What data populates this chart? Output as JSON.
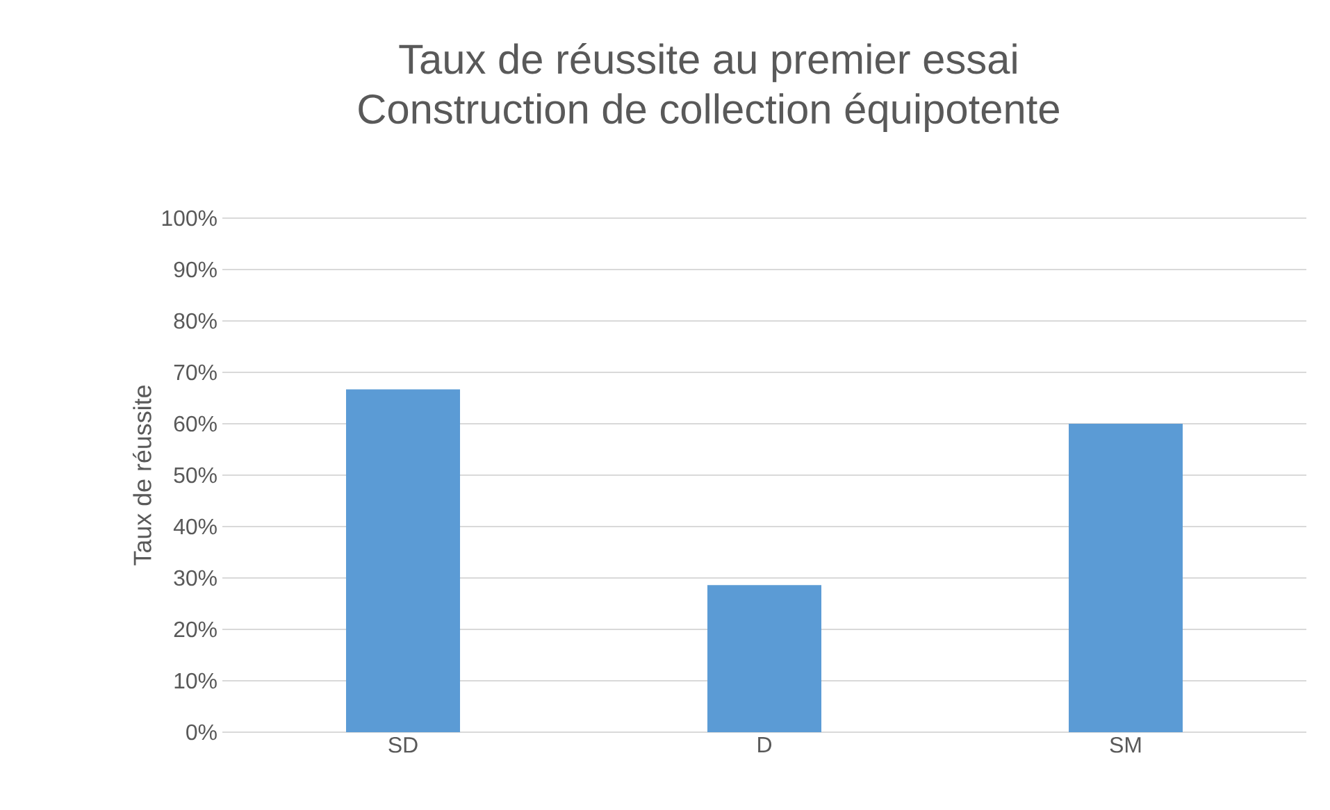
{
  "chart_data": {
    "type": "bar",
    "title": "Taux de réussite au premier essai",
    "subtitle": "Construction de collection équipotente",
    "ylabel": "Taux de réussite",
    "categories": [
      "SD",
      "D",
      "SM"
    ],
    "values": [
      66.7,
      28.6,
      60
    ],
    "color": "#5b9bd5",
    "ylim": [
      0,
      100
    ],
    "yticks": [
      {
        "value": 0,
        "label": "0%"
      },
      {
        "value": 10,
        "label": "10%"
      },
      {
        "value": 20,
        "label": "20%"
      },
      {
        "value": 30,
        "label": "30%"
      },
      {
        "value": 40,
        "label": "40%"
      },
      {
        "value": 50,
        "label": "50%"
      },
      {
        "value": 60,
        "label": "60%"
      },
      {
        "value": 70,
        "label": "70%"
      },
      {
        "value": 80,
        "label": "80%"
      },
      {
        "value": 90,
        "label": "90%"
      },
      {
        "value": 100,
        "label": "100%"
      }
    ],
    "grid": "y"
  }
}
